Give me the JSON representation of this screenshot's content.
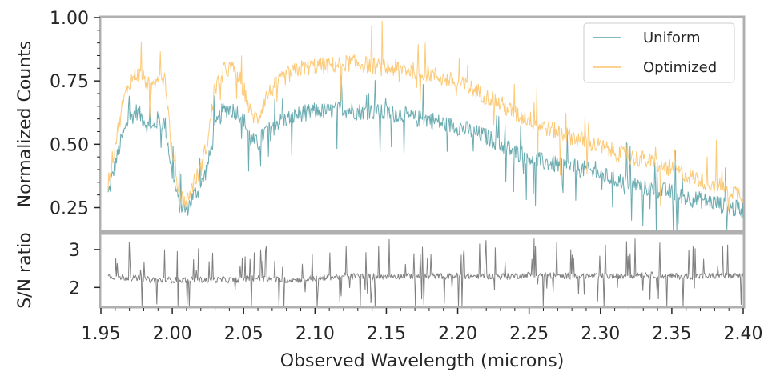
{
  "chart_data": [
    {
      "type": "line",
      "title": "",
      "xlabel": "",
      "ylabel": "Normalized Counts",
      "xlim": [
        1.95,
        2.4
      ],
      "ylim": [
        0.16,
        1.0
      ],
      "yticks": [
        "0.25",
        "0.50",
        "0.75",
        "1.00"
      ],
      "legend": {
        "position": "top-right",
        "entries": [
          "Uniform",
          "Optimized"
        ]
      },
      "grid": false,
      "series": [
        {
          "name": "Uniform",
          "color": "#5ba3a8",
          "x": [
            1.955,
            1.96,
            1.965,
            1.97,
            1.975,
            1.98,
            1.985,
            1.99,
            1.995,
            2.0,
            2.005,
            2.01,
            2.015,
            2.02,
            2.025,
            2.03,
            2.035,
            2.04,
            2.045,
            2.05,
            2.055,
            2.06,
            2.065,
            2.07,
            2.08,
            2.09,
            2.1,
            2.11,
            2.12,
            2.13,
            2.14,
            2.15,
            2.16,
            2.17,
            2.18,
            2.19,
            2.2,
            2.21,
            2.22,
            2.23,
            2.24,
            2.25,
            2.26,
            2.27,
            2.28,
            2.29,
            2.3,
            2.31,
            2.32,
            2.33,
            2.34,
            2.35,
            2.36,
            2.37,
            2.38,
            2.39,
            2.4
          ],
          "y": [
            0.3,
            0.42,
            0.53,
            0.6,
            0.63,
            0.6,
            0.55,
            0.6,
            0.58,
            0.38,
            0.26,
            0.24,
            0.3,
            0.33,
            0.42,
            0.56,
            0.63,
            0.64,
            0.63,
            0.6,
            0.52,
            0.5,
            0.55,
            0.58,
            0.6,
            0.62,
            0.63,
            0.63,
            0.64,
            0.63,
            0.63,
            0.62,
            0.62,
            0.6,
            0.6,
            0.58,
            0.57,
            0.55,
            0.53,
            0.5,
            0.47,
            0.45,
            0.43,
            0.42,
            0.41,
            0.4,
            0.38,
            0.36,
            0.35,
            0.33,
            0.32,
            0.31,
            0.29,
            0.28,
            0.27,
            0.25,
            0.24
          ]
        },
        {
          "name": "Optimized",
          "color": "#fcc469",
          "x": [
            1.955,
            1.96,
            1.965,
            1.97,
            1.975,
            1.98,
            1.985,
            1.99,
            1.995,
            2.0,
            2.005,
            2.01,
            2.015,
            2.02,
            2.025,
            2.03,
            2.035,
            2.04,
            2.045,
            2.05,
            2.055,
            2.06,
            2.065,
            2.07,
            2.08,
            2.09,
            2.1,
            2.11,
            2.12,
            2.13,
            2.14,
            2.15,
            2.16,
            2.17,
            2.18,
            2.19,
            2.2,
            2.21,
            2.22,
            2.23,
            2.24,
            2.25,
            2.26,
            2.27,
            2.28,
            2.29,
            2.3,
            2.31,
            2.32,
            2.33,
            2.34,
            2.35,
            2.36,
            2.37,
            2.38,
            2.39,
            2.4
          ],
          "y": [
            0.35,
            0.5,
            0.65,
            0.75,
            0.78,
            0.76,
            0.72,
            0.78,
            0.76,
            0.45,
            0.3,
            0.27,
            0.35,
            0.4,
            0.52,
            0.72,
            0.79,
            0.8,
            0.79,
            0.72,
            0.62,
            0.6,
            0.68,
            0.72,
            0.77,
            0.8,
            0.81,
            0.81,
            0.82,
            0.82,
            0.81,
            0.8,
            0.8,
            0.79,
            0.78,
            0.76,
            0.74,
            0.72,
            0.69,
            0.66,
            0.62,
            0.6,
            0.57,
            0.55,
            0.53,
            0.51,
            0.49,
            0.47,
            0.45,
            0.44,
            0.42,
            0.4,
            0.38,
            0.36,
            0.34,
            0.32,
            0.3
          ]
        }
      ]
    },
    {
      "type": "line",
      "title": "",
      "xlabel": "Observed Wavelength (microns)",
      "ylabel": "S/N ratio",
      "xlim": [
        1.95,
        2.4
      ],
      "ylim": [
        1.5,
        3.4
      ],
      "xticks": [
        "1.95",
        "2.00",
        "2.05",
        "2.10",
        "2.15",
        "2.20",
        "2.25",
        "2.30",
        "2.35",
        "2.40"
      ],
      "yticks": [
        "2",
        "3"
      ],
      "grid": false,
      "series": [
        {
          "color": "#808080",
          "x": [
            1.955,
            1.97,
            1.985,
            2.0,
            2.015,
            2.03,
            2.045,
            2.06,
            2.075,
            2.09,
            2.105,
            2.12,
            2.135,
            2.15,
            2.165,
            2.18,
            2.195,
            2.21,
            2.225,
            2.24,
            2.255,
            2.27,
            2.285,
            2.3,
            2.315,
            2.33,
            2.345,
            2.36,
            2.375,
            2.39,
            2.4
          ],
          "y": [
            2.3,
            2.25,
            2.2,
            2.2,
            2.2,
            2.2,
            2.2,
            2.25,
            2.2,
            2.2,
            2.25,
            2.3,
            2.3,
            2.3,
            2.3,
            2.3,
            2.3,
            2.3,
            2.3,
            2.3,
            2.35,
            2.3,
            2.3,
            2.3,
            2.3,
            2.35,
            2.3,
            2.3,
            2.3,
            2.3,
            2.3
          ]
        }
      ]
    }
  ]
}
